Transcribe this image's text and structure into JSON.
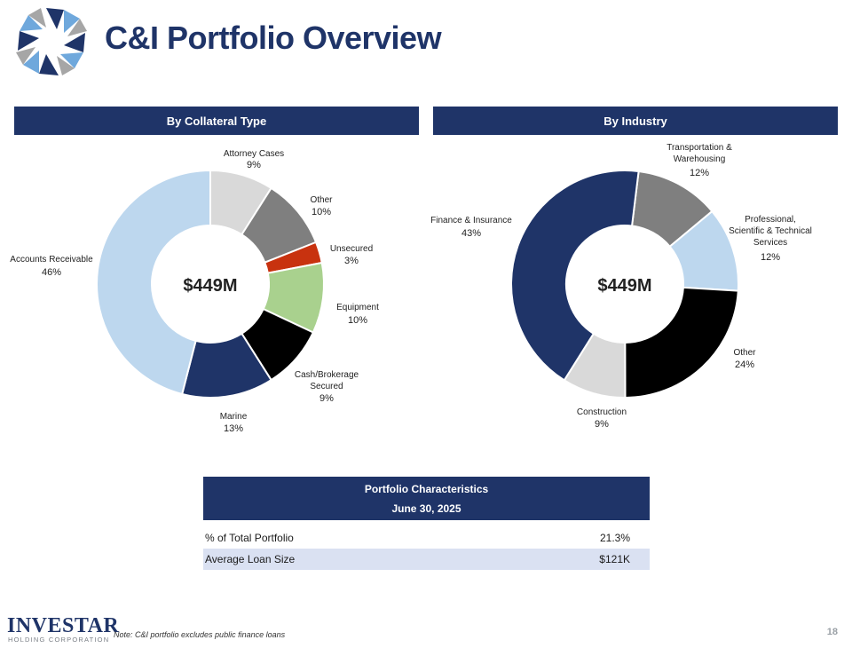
{
  "header": {
    "title": "C&I Portfolio Overview"
  },
  "sections": {
    "left_title": "By Collateral Type",
    "right_title": "By Industry"
  },
  "colors": {
    "navy": "#1f3468",
    "band": "#dae1f2"
  },
  "chart_data": [
    {
      "type": "donut",
      "title": "By Collateral Type",
      "center_label": "$449M",
      "start_angle_deg": 0,
      "slices": [
        {
          "label": "Attorney Cases",
          "value": 9,
          "pct_label": "9%",
          "color": "#d9d9d9"
        },
        {
          "label": "Other",
          "value": 10,
          "pct_label": "10%",
          "color": "#7f7f7f"
        },
        {
          "label": "Unsecured",
          "value": 3,
          "pct_label": "3%",
          "color": "#c8320f"
        },
        {
          "label": "Equipment",
          "value": 10,
          "pct_label": "10%",
          "color": "#a9d18e"
        },
        {
          "label": "Cash/Brokerage Secured",
          "value": 9,
          "pct_label": "9%",
          "color": "#000000"
        },
        {
          "label": "Marine",
          "value": 13,
          "pct_label": "13%",
          "color": "#1f3468"
        },
        {
          "label": "Accounts Receivable",
          "value": 46,
          "pct_label": "46%",
          "color": "#bdd7ee"
        }
      ]
    },
    {
      "type": "donut",
      "title": "By Industry",
      "center_label": "$449M",
      "start_angle_deg": 7,
      "slices": [
        {
          "label": "Transportation & Warehousing",
          "value": 12,
          "pct_label": "12%",
          "color": "#7f7f7f"
        },
        {
          "label": "Professional, Scientific & Technical Services",
          "value": 12,
          "pct_label": "12%",
          "color": "#bdd7ee"
        },
        {
          "label": "Other",
          "value": 24,
          "pct_label": "24%",
          "color": "#000000"
        },
        {
          "label": "Construction",
          "value": 9,
          "pct_label": "9%",
          "color": "#d9d9d9"
        },
        {
          "label": "Finance & Insurance",
          "value": 43,
          "pct_label": "43%",
          "color": "#1f3468"
        }
      ]
    }
  ],
  "table": {
    "header_line1": "Portfolio Characteristics",
    "header_line2": "June 30, 2025",
    "rows": [
      {
        "label": "% of Total Portfolio",
        "value": "21.3%"
      },
      {
        "label": "Average Loan Size",
        "value": "$121K"
      }
    ]
  },
  "footer": {
    "brand": "INVESTAR",
    "brand_sub": "HOLDING CORPORATION",
    "note": "Note: C&I portfolio excludes public finance loans",
    "page_number": "18"
  }
}
